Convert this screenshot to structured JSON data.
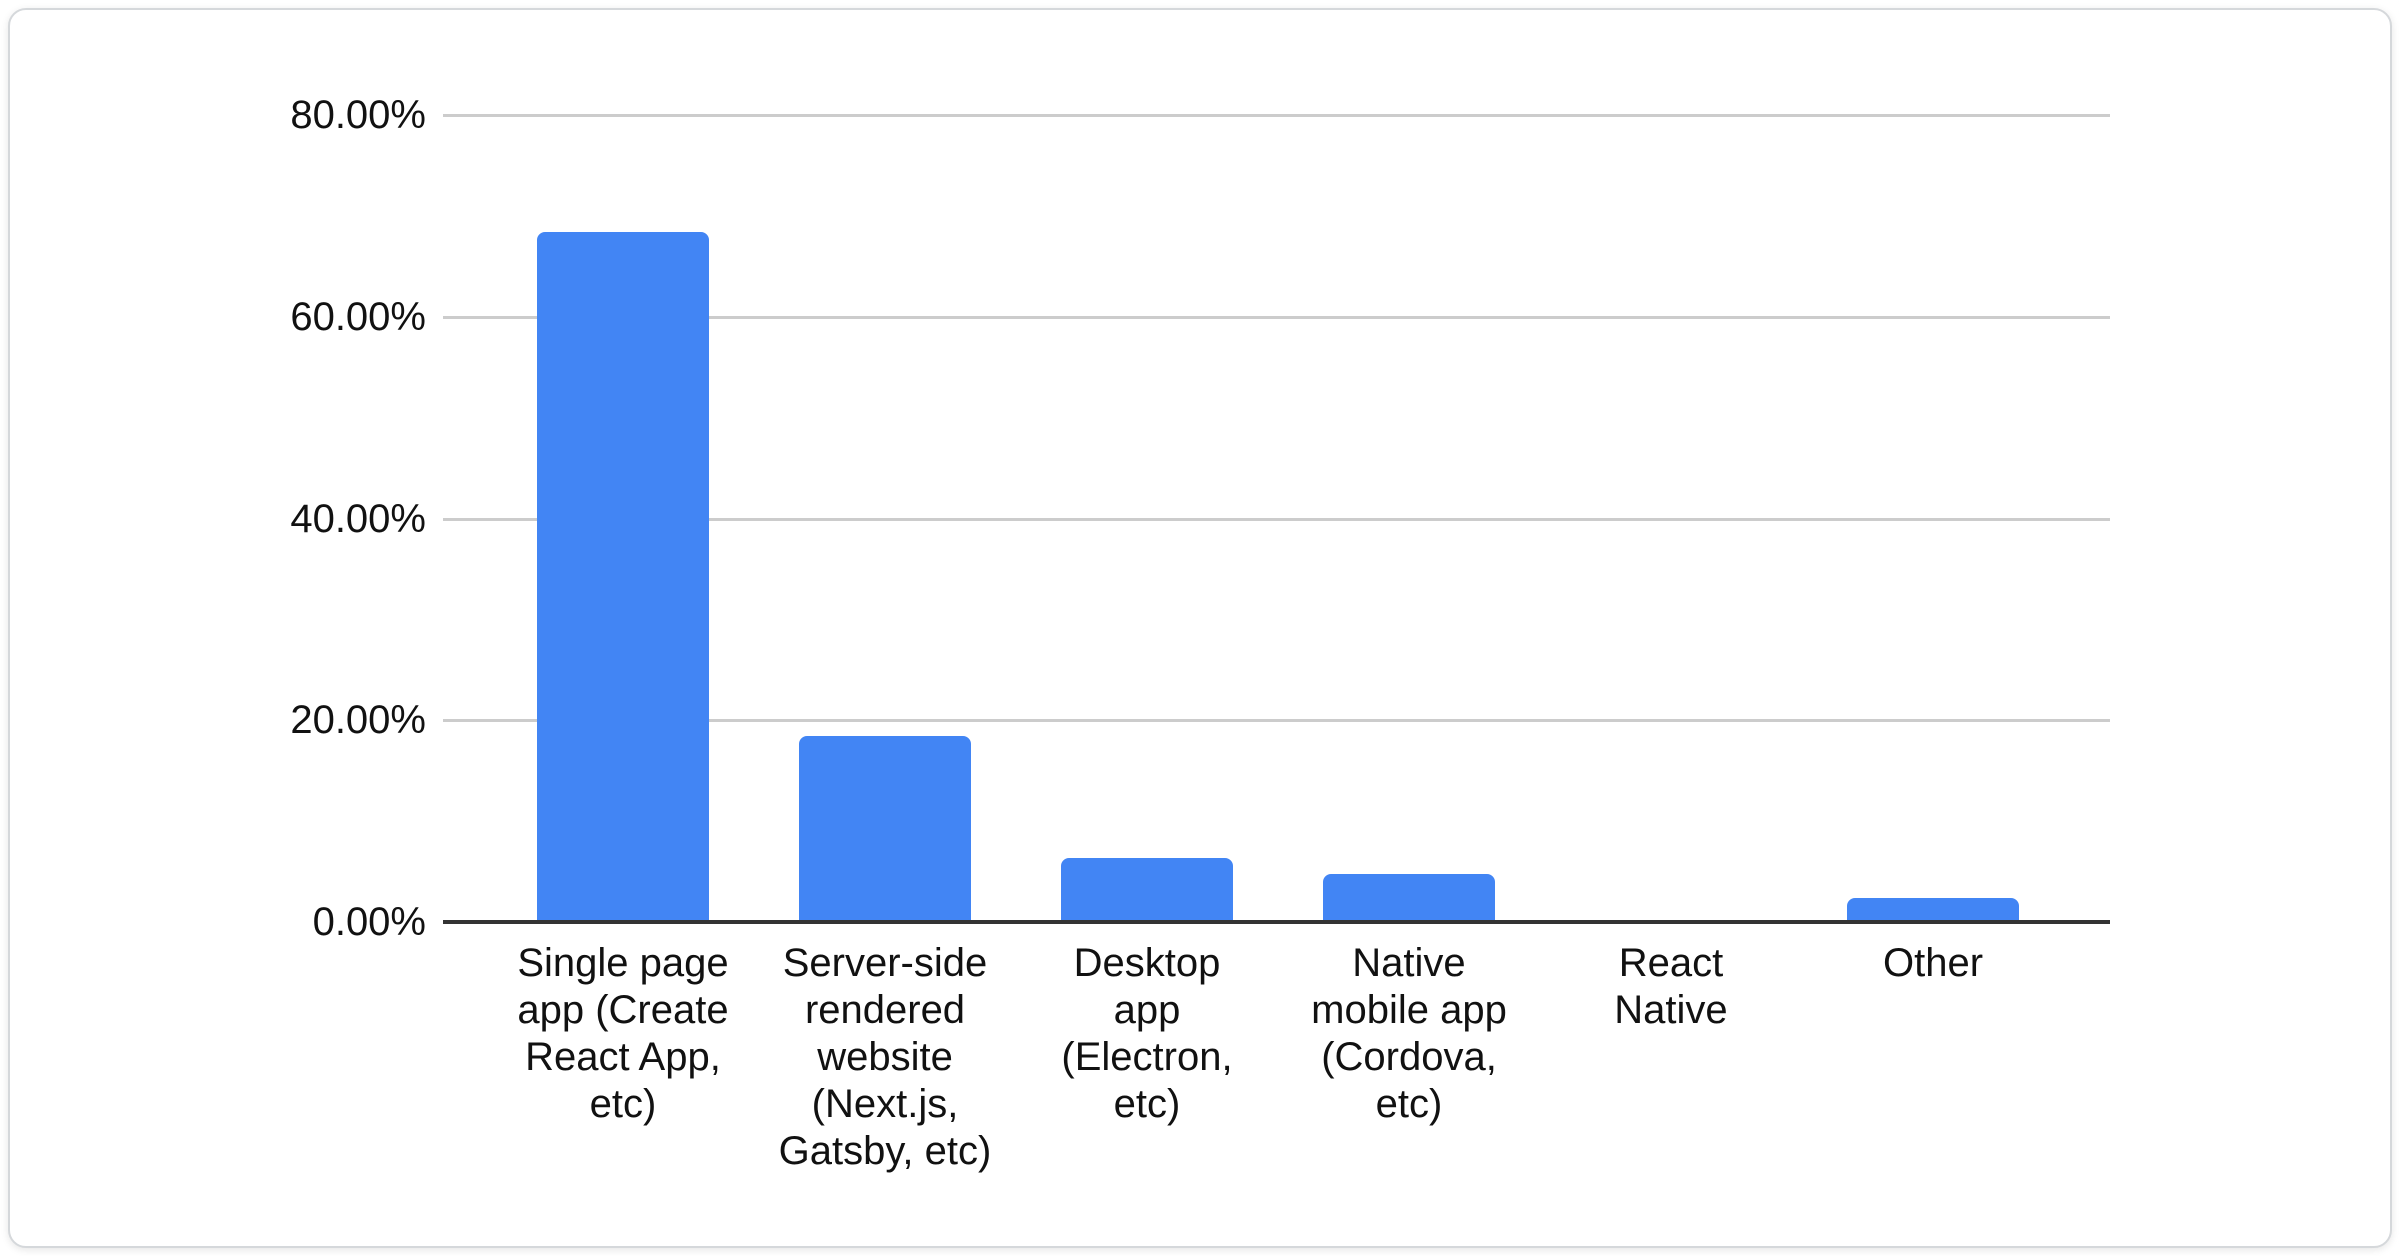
{
  "chart_data": {
    "type": "bar",
    "title": "",
    "xlabel": "",
    "ylabel": "",
    "categories": [
      "Single page app (Create React App, etc)",
      "Server-side rendered website (Next.js, Gatsby, etc)",
      "Desktop app (Electron, etc)",
      "Native mobile app (Cordova, etc)",
      "React Native",
      "Other"
    ],
    "values": [
      68.3,
      18.3,
      6.2,
      4.7,
      0,
      2.3
    ],
    "value_unit": "%",
    "ylim": [
      0,
      80
    ],
    "ytick_step": 20,
    "ytick_labels": [
      "0.00%",
      "20.00%",
      "40.00%",
      "60.00%",
      "80.00%"
    ],
    "grid": true,
    "legend": "none",
    "series": [
      {
        "name": "",
        "values": [
          68.3,
          18.3,
          6.2,
          4.7,
          0,
          2.3
        ]
      }
    ]
  },
  "colors": {
    "bar": "#4285f4",
    "gridline": "#cccccc",
    "axis_line": "#333333",
    "text": "#111111",
    "card_border": "#d5d8db",
    "card_background": "#ffffff"
  }
}
